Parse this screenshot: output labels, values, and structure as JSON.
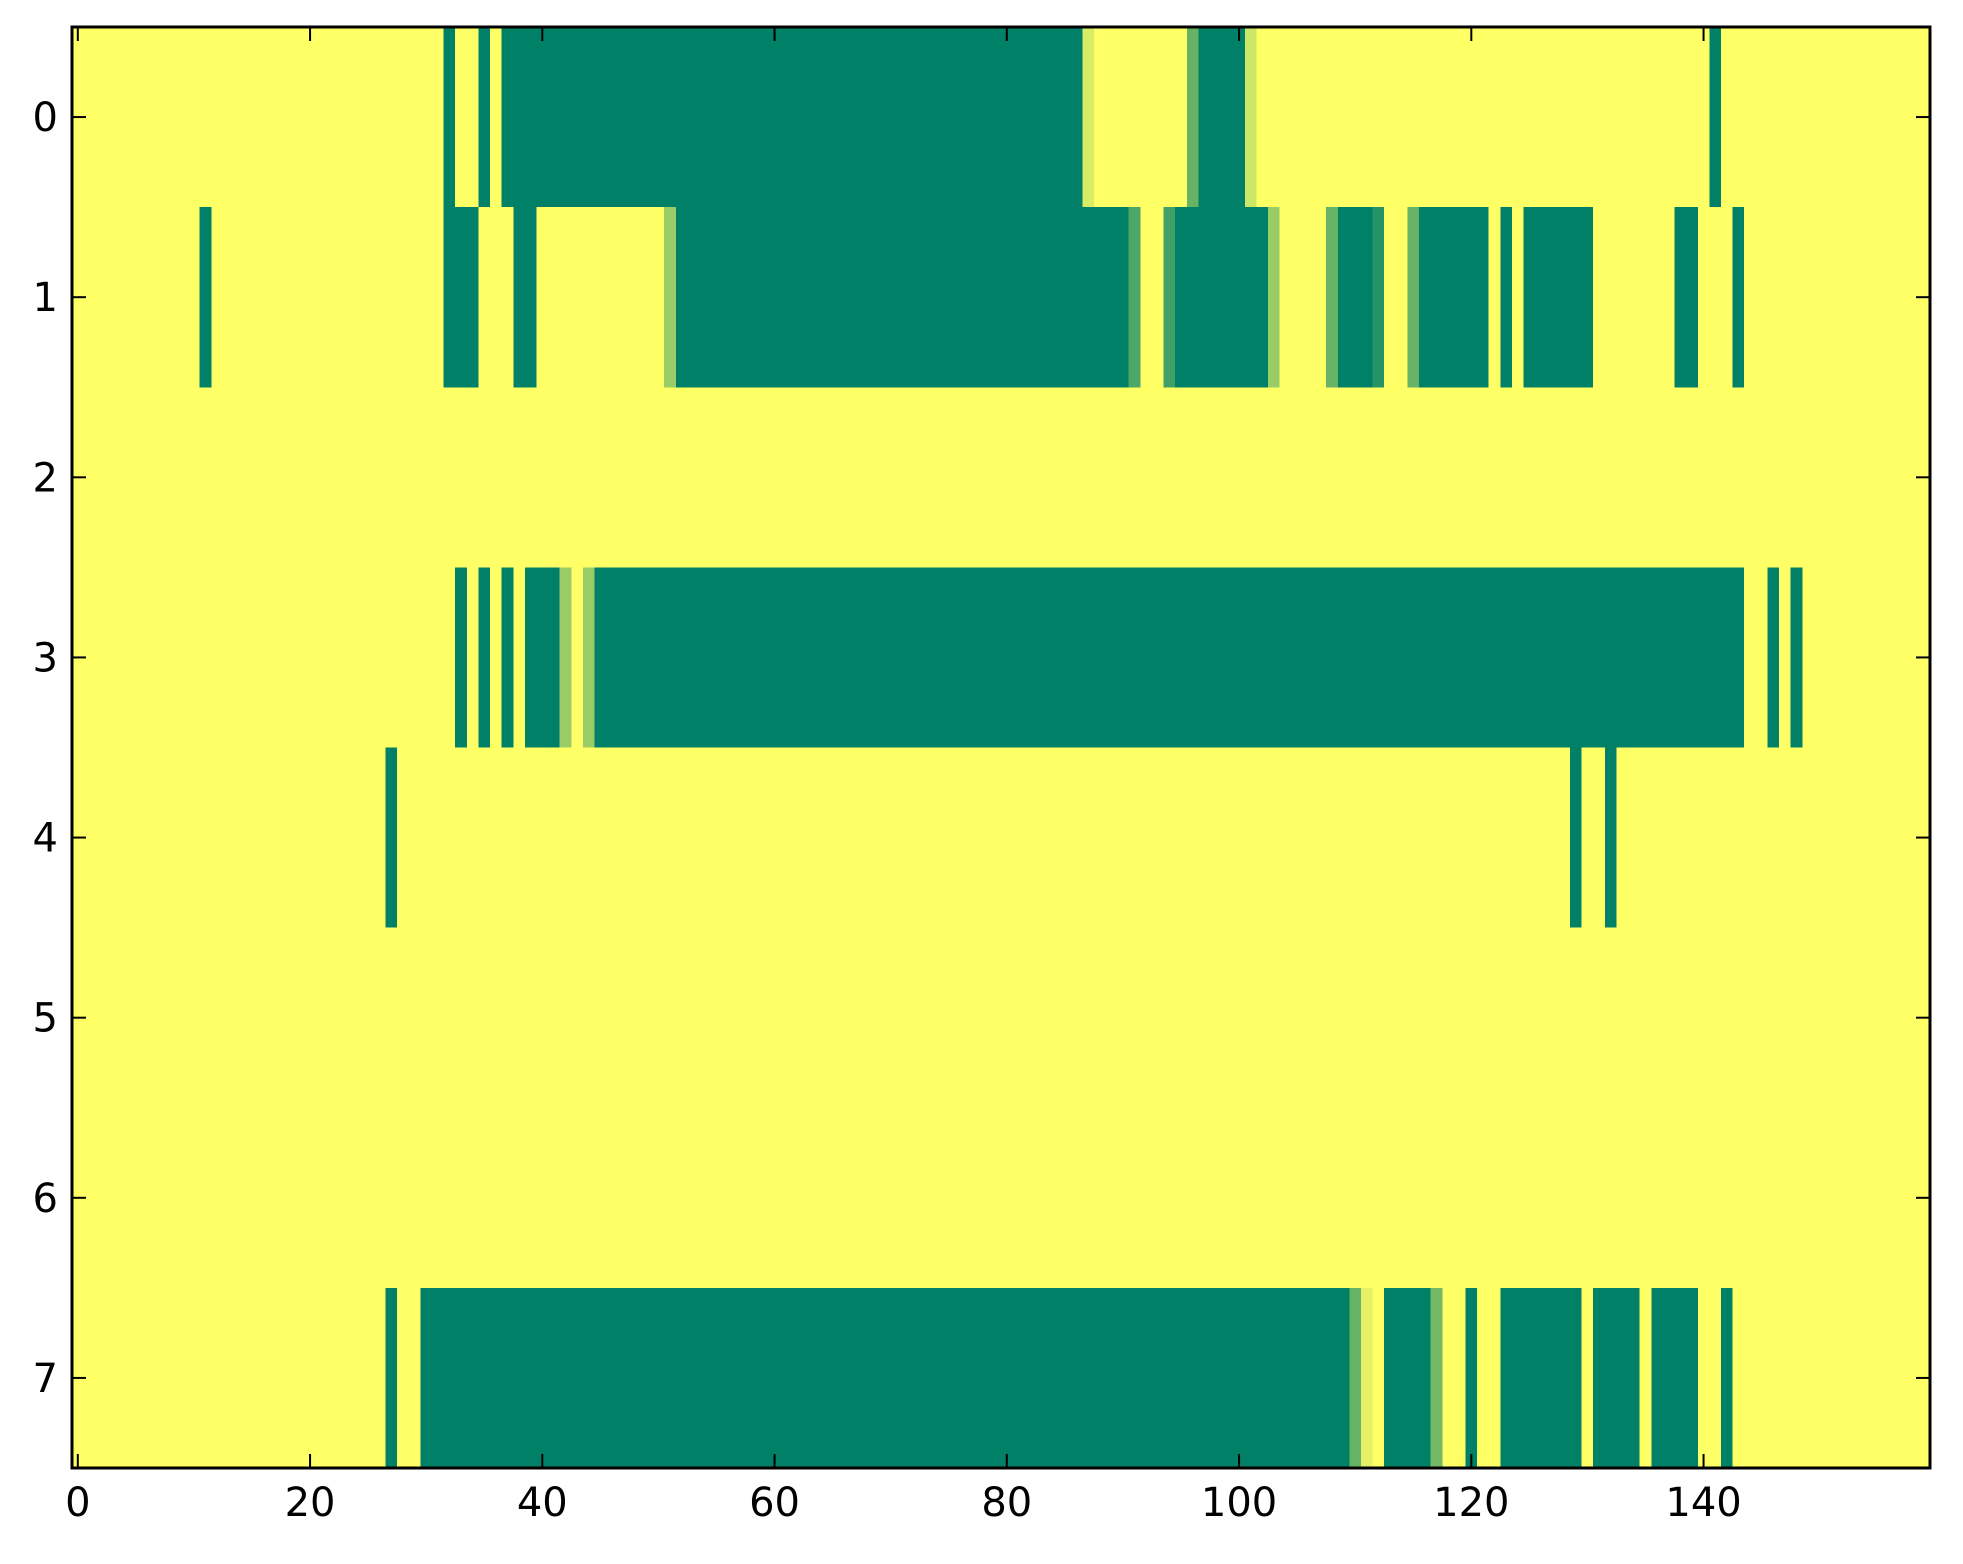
{
  "chart_data": {
    "type": "heatmap",
    "title": "",
    "xlabel": "",
    "ylabel": "",
    "xlim": [
      -0.5,
      159.5
    ],
    "ylim": [
      7.5,
      -0.5
    ],
    "grid": false,
    "x_ticks": [
      0,
      20,
      40,
      60,
      80,
      100,
      120,
      140
    ],
    "x_tick_labels": [
      "0",
      "20",
      "40",
      "60",
      "80",
      "100",
      "120",
      "140"
    ],
    "y_ticks": [
      0,
      1,
      2,
      3,
      4,
      5,
      6,
      7
    ],
    "y_tick_labels": [
      "0",
      "1",
      "2",
      "3",
      "4",
      "5",
      "6",
      "7"
    ],
    "n_columns": 160,
    "n_rows": 8,
    "value_range": [
      0,
      1
    ],
    "colormap": {
      "low": "#008066",
      "high": "#ffff66",
      "name": "summer"
    },
    "background_value": 1,
    "rows": [
      {
        "row": 0,
        "segments": [
          {
            "start": 32,
            "end": 32,
            "value": 0
          },
          {
            "start": 35,
            "end": 35,
            "value": 0
          },
          {
            "start": 37,
            "end": 86,
            "value": 0
          },
          {
            "start": 87,
            "end": 87,
            "value": 0.85
          },
          {
            "start": 96,
            "end": 96,
            "value": 0.4
          },
          {
            "start": 97,
            "end": 100,
            "value": 0
          },
          {
            "start": 101,
            "end": 101,
            "value": 0.8
          },
          {
            "start": 141,
            "end": 141,
            "value": 0
          }
        ]
      },
      {
        "row": 1,
        "segments": [
          {
            "start": 11,
            "end": 11,
            "value": 0
          },
          {
            "start": 32,
            "end": 34,
            "value": 0
          },
          {
            "start": 38,
            "end": 39,
            "value": 0
          },
          {
            "start": 51,
            "end": 51,
            "value": 0.6
          },
          {
            "start": 52,
            "end": 90,
            "value": 0
          },
          {
            "start": 91,
            "end": 91,
            "value": 0.3
          },
          {
            "start": 94,
            "end": 94,
            "value": 0.25
          },
          {
            "start": 95,
            "end": 102,
            "value": 0
          },
          {
            "start": 103,
            "end": 103,
            "value": 0.6
          },
          {
            "start": 108,
            "end": 108,
            "value": 0.4
          },
          {
            "start": 109,
            "end": 111,
            "value": 0
          },
          {
            "start": 112,
            "end": 112,
            "value": 0.15
          },
          {
            "start": 115,
            "end": 115,
            "value": 0.4
          },
          {
            "start": 116,
            "end": 121,
            "value": 0
          },
          {
            "start": 123,
            "end": 123,
            "value": 0
          },
          {
            "start": 125,
            "end": 130,
            "value": 0
          },
          {
            "start": 138,
            "end": 139,
            "value": 0
          },
          {
            "start": 143,
            "end": 143,
            "value": 0
          }
        ]
      },
      {
        "row": 2,
        "segments": []
      },
      {
        "row": 3,
        "segments": [
          {
            "start": 33,
            "end": 33,
            "value": 0
          },
          {
            "start": 35,
            "end": 35,
            "value": 0
          },
          {
            "start": 37,
            "end": 37,
            "value": 0
          },
          {
            "start": 39,
            "end": 41,
            "value": 0
          },
          {
            "start": 42,
            "end": 42,
            "value": 0.6
          },
          {
            "start": 44,
            "end": 44,
            "value": 0.6
          },
          {
            "start": 45,
            "end": 143,
            "value": 0
          },
          {
            "start": 146,
            "end": 146,
            "value": 0
          },
          {
            "start": 148,
            "end": 148,
            "value": 0
          }
        ]
      },
      {
        "row": 4,
        "segments": [
          {
            "start": 27,
            "end": 27,
            "value": 0
          },
          {
            "start": 129,
            "end": 129,
            "value": 0
          },
          {
            "start": 132,
            "end": 132,
            "value": 0
          }
        ]
      },
      {
        "row": 5,
        "segments": []
      },
      {
        "row": 6,
        "segments": []
      },
      {
        "row": 7,
        "segments": [
          {
            "start": 27,
            "end": 27,
            "value": 0
          },
          {
            "start": 30,
            "end": 109,
            "value": 0
          },
          {
            "start": 110,
            "end": 110,
            "value": 0.4
          },
          {
            "start": 111,
            "end": 111,
            "value": 0.9
          },
          {
            "start": 113,
            "end": 116,
            "value": 0
          },
          {
            "start": 117,
            "end": 117,
            "value": 0.45
          },
          {
            "start": 120,
            "end": 120,
            "value": 0
          },
          {
            "start": 123,
            "end": 129,
            "value": 0
          },
          {
            "start": 131,
            "end": 134,
            "value": 0
          },
          {
            "start": 136,
            "end": 139,
            "value": 0
          },
          {
            "start": 142,
            "end": 142,
            "value": 0
          }
        ]
      }
    ]
  }
}
